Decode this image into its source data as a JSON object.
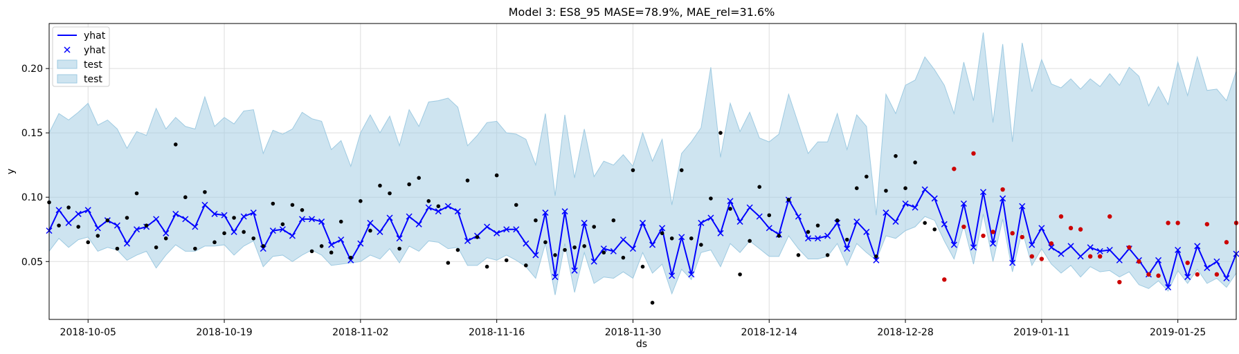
{
  "chart_data": {
    "type": "line",
    "title": "Model 3: ES8_95 MASE=78.9%, MAE_rel=31.6%",
    "xlabel": "ds",
    "ylabel": "y",
    "x_range": [
      "2018-10-01",
      "2019-01-31"
    ],
    "ylim": [
      0.005,
      0.235
    ],
    "grid": true,
    "legend_position": "top-left",
    "x_ticks": [
      "2018-10-05",
      "2018-10-19",
      "2018-11-02",
      "2018-11-16",
      "2018-11-30",
      "2018-12-14",
      "2018-12-28",
      "2019-01-11",
      "2019-01-25"
    ],
    "y_ticks": [
      "0.05",
      "0.10",
      "0.15",
      "0.20"
    ],
    "legend": [
      {
        "label": "yhat",
        "marker": "line"
      },
      {
        "label": "yhat",
        "marker": "x"
      },
      {
        "label": "test",
        "marker": "patch"
      },
      {
        "label": "test",
        "marker": "patch"
      }
    ],
    "colors": {
      "forecast": "#0000ff",
      "band_fill": "#a6cee3",
      "band_edge": "#9ecae1",
      "train_points": "#000000",
      "test_points": "#cc0000",
      "grid": "#dddddd"
    },
    "forecast": {
      "x_start": "2018-10-01",
      "x_end": "2019-01-31",
      "yhat": [
        0.074,
        0.09,
        0.08,
        0.087,
        0.09,
        0.076,
        0.082,
        0.078,
        0.064,
        0.075,
        0.077,
        0.083,
        0.072,
        0.087,
        0.083,
        0.077,
        0.094,
        0.087,
        0.086,
        0.073,
        0.085,
        0.088,
        0.06,
        0.074,
        0.075,
        0.07,
        0.083,
        0.083,
        0.081,
        0.063,
        0.067,
        0.051,
        0.064,
        0.08,
        0.073,
        0.084,
        0.068,
        0.085,
        0.079,
        0.092,
        0.089,
        0.093,
        0.089,
        0.066,
        0.07,
        0.077,
        0.072,
        0.075,
        0.075,
        0.064,
        0.055,
        0.088,
        0.038,
        0.089,
        0.043,
        0.08,
        0.05,
        0.06,
        0.058,
        0.067,
        0.06,
        0.08,
        0.063,
        0.076,
        0.039,
        0.069,
        0.04,
        0.08,
        0.084,
        0.072,
        0.097,
        0.081,
        0.092,
        0.085,
        0.076,
        0.071,
        0.098,
        0.085,
        0.068,
        0.068,
        0.07,
        0.08,
        0.06,
        0.081,
        0.073,
        0.051,
        0.088,
        0.081,
        0.095,
        0.092,
        0.106,
        0.099,
        0.079,
        0.063,
        0.095,
        0.061,
        0.104,
        0.064,
        0.099,
        0.049,
        0.093,
        0.063,
        0.076,
        0.061,
        0.056,
        0.062,
        0.054,
        0.061,
        0.058,
        0.059,
        0.051,
        0.06,
        0.051,
        0.04,
        0.051,
        0.03,
        0.059,
        0.038,
        0.062,
        0.045,
        0.05,
        0.037,
        0.056
      ],
      "upper": [
        0.15,
        0.165,
        0.16,
        0.166,
        0.173,
        0.156,
        0.16,
        0.153,
        0.138,
        0.151,
        0.148,
        0.169,
        0.153,
        0.162,
        0.155,
        0.153,
        0.178,
        0.155,
        0.162,
        0.157,
        0.167,
        0.168,
        0.134,
        0.152,
        0.149,
        0.153,
        0.166,
        0.161,
        0.159,
        0.137,
        0.144,
        0.124,
        0.15,
        0.164,
        0.15,
        0.163,
        0.14,
        0.168,
        0.155,
        0.174,
        0.175,
        0.177,
        0.17,
        0.14,
        0.148,
        0.158,
        0.159,
        0.15,
        0.149,
        0.145,
        0.125,
        0.165,
        0.101,
        0.164,
        0.115,
        0.153,
        0.116,
        0.128,
        0.125,
        0.133,
        0.124,
        0.15,
        0.128,
        0.145,
        0.094,
        0.134,
        0.143,
        0.154,
        0.201,
        0.131,
        0.173,
        0.151,
        0.166,
        0.146,
        0.143,
        0.149,
        0.18,
        0.157,
        0.134,
        0.143,
        0.143,
        0.165,
        0.137,
        0.164,
        0.155,
        0.086,
        0.18,
        0.165,
        0.187,
        0.191,
        0.209,
        0.199,
        0.187,
        0.165,
        0.205,
        0.175,
        0.228,
        0.158,
        0.219,
        0.143,
        0.22,
        0.182,
        0.207,
        0.188,
        0.185,
        0.192,
        0.184,
        0.192,
        0.186,
        0.196,
        0.187,
        0.201,
        0.194,
        0.171,
        0.186,
        0.172,
        0.205,
        0.179,
        0.209,
        0.183,
        0.184,
        0.175,
        0.198
      ],
      "lower": [
        0.058,
        0.068,
        0.061,
        0.067,
        0.069,
        0.058,
        0.061,
        0.059,
        0.051,
        0.055,
        0.058,
        0.045,
        0.055,
        0.063,
        0.058,
        0.058,
        0.062,
        0.062,
        0.063,
        0.055,
        0.062,
        0.066,
        0.046,
        0.054,
        0.055,
        0.05,
        0.055,
        0.059,
        0.055,
        0.047,
        0.048,
        0.049,
        0.05,
        0.055,
        0.052,
        0.06,
        0.049,
        0.062,
        0.058,
        0.066,
        0.065,
        0.06,
        0.061,
        0.047,
        0.047,
        0.053,
        0.051,
        0.055,
        0.051,
        0.046,
        0.037,
        0.064,
        0.024,
        0.064,
        0.026,
        0.057,
        0.033,
        0.038,
        0.037,
        0.042,
        0.037,
        0.057,
        0.041,
        0.048,
        0.025,
        0.044,
        0.036,
        0.057,
        0.059,
        0.046,
        0.064,
        0.057,
        0.066,
        0.06,
        0.054,
        0.054,
        0.07,
        0.06,
        0.052,
        0.052,
        0.054,
        0.064,
        0.047,
        0.064,
        0.057,
        0.051,
        0.07,
        0.068,
        0.074,
        0.077,
        0.085,
        0.082,
        0.066,
        0.052,
        0.078,
        0.048,
        0.087,
        0.05,
        0.083,
        0.042,
        0.074,
        0.047,
        0.06,
        0.048,
        0.041,
        0.047,
        0.038,
        0.046,
        0.042,
        0.043,
        0.038,
        0.042,
        0.032,
        0.029,
        0.035,
        0.027,
        0.043,
        0.033,
        0.044,
        0.033,
        0.037,
        0.03,
        0.041
      ]
    },
    "train_points": [
      {
        "x": "2018-10-01",
        "y": 0.096
      },
      {
        "x": "2018-10-02",
        "y": 0.078
      },
      {
        "x": "2018-10-03",
        "y": 0.092
      },
      {
        "x": "2018-10-04",
        "y": 0.077
      },
      {
        "x": "2018-10-05",
        "y": 0.065
      },
      {
        "x": "2018-10-06",
        "y": 0.07
      },
      {
        "x": "2018-10-07",
        "y": 0.082
      },
      {
        "x": "2018-10-08",
        "y": 0.06
      },
      {
        "x": "2018-10-09",
        "y": 0.084
      },
      {
        "x": "2018-10-10",
        "y": 0.103
      },
      {
        "x": "2018-10-11",
        "y": 0.078
      },
      {
        "x": "2018-10-12",
        "y": 0.061
      },
      {
        "x": "2018-10-13",
        "y": 0.068
      },
      {
        "x": "2018-10-14",
        "y": 0.141
      },
      {
        "x": "2018-10-15",
        "y": 0.1
      },
      {
        "x": "2018-10-16",
        "y": 0.06
      },
      {
        "x": "2018-10-17",
        "y": 0.104
      },
      {
        "x": "2018-10-18",
        "y": 0.065
      },
      {
        "x": "2018-10-19",
        "y": 0.072
      },
      {
        "x": "2018-10-20",
        "y": 0.084
      },
      {
        "x": "2018-10-21",
        "y": 0.073
      },
      {
        "x": "2018-10-22",
        "y": 0.068
      },
      {
        "x": "2018-10-23",
        "y": 0.062
      },
      {
        "x": "2018-10-24",
        "y": 0.095
      },
      {
        "x": "2018-10-25",
        "y": 0.079
      },
      {
        "x": "2018-10-26",
        "y": 0.094
      },
      {
        "x": "2018-10-27",
        "y": 0.09
      },
      {
        "x": "2018-10-28",
        "y": 0.058
      },
      {
        "x": "2018-10-29",
        "y": 0.062
      },
      {
        "x": "2018-10-30",
        "y": 0.057
      },
      {
        "x": "2018-10-31",
        "y": 0.081
      },
      {
        "x": "2018-11-01",
        "y": 0.053
      },
      {
        "x": "2018-11-02",
        "y": 0.097
      },
      {
        "x": "2018-11-03",
        "y": 0.074
      },
      {
        "x": "2018-11-04",
        "y": 0.109
      },
      {
        "x": "2018-11-05",
        "y": 0.103
      },
      {
        "x": "2018-11-06",
        "y": 0.06
      },
      {
        "x": "2018-11-07",
        "y": 0.11
      },
      {
        "x": "2018-11-08",
        "y": 0.115
      },
      {
        "x": "2018-11-09",
        "y": 0.097
      },
      {
        "x": "2018-11-10",
        "y": 0.093
      },
      {
        "x": "2018-11-11",
        "y": 0.049
      },
      {
        "x": "2018-11-12",
        "y": 0.059
      },
      {
        "x": "2018-11-13",
        "y": 0.113
      },
      {
        "x": "2018-11-14",
        "y": 0.069
      },
      {
        "x": "2018-11-15",
        "y": 0.046
      },
      {
        "x": "2018-11-16",
        "y": 0.117
      },
      {
        "x": "2018-11-17",
        "y": 0.051
      },
      {
        "x": "2018-11-18",
        "y": 0.094
      },
      {
        "x": "2018-11-19",
        "y": 0.047
      },
      {
        "x": "2018-11-20",
        "y": 0.082
      },
      {
        "x": "2018-11-21",
        "y": 0.065
      },
      {
        "x": "2018-11-22",
        "y": 0.055
      },
      {
        "x": "2018-11-23",
        "y": 0.059
      },
      {
        "x": "2018-11-24",
        "y": 0.061
      },
      {
        "x": "2018-11-25",
        "y": 0.062
      },
      {
        "x": "2018-11-26",
        "y": 0.077
      },
      {
        "x": "2018-11-27",
        "y": 0.057
      },
      {
        "x": "2018-11-28",
        "y": 0.082
      },
      {
        "x": "2018-11-29",
        "y": 0.053
      },
      {
        "x": "2018-11-30",
        "y": 0.121
      },
      {
        "x": "2018-12-01",
        "y": 0.046
      },
      {
        "x": "2018-12-02",
        "y": 0.018
      },
      {
        "x": "2018-12-03",
        "y": 0.072
      },
      {
        "x": "2018-12-04",
        "y": 0.068
      },
      {
        "x": "2018-12-05",
        "y": 0.121
      },
      {
        "x": "2018-12-06",
        "y": 0.068
      },
      {
        "x": "2018-12-07",
        "y": 0.063
      },
      {
        "x": "2018-12-08",
        "y": 0.099
      },
      {
        "x": "2018-12-09",
        "y": 0.15
      },
      {
        "x": "2018-12-10",
        "y": 0.091
      },
      {
        "x": "2018-12-11",
        "y": 0.04
      },
      {
        "x": "2018-12-12",
        "y": 0.066
      },
      {
        "x": "2018-12-13",
        "y": 0.108
      },
      {
        "x": "2018-12-14",
        "y": 0.086
      },
      {
        "x": "2018-12-15",
        "y": 0.07
      },
      {
        "x": "2018-12-16",
        "y": 0.098
      },
      {
        "x": "2018-12-17",
        "y": 0.055
      },
      {
        "x": "2018-12-18",
        "y": 0.073
      },
      {
        "x": "2018-12-19",
        "y": 0.078
      },
      {
        "x": "2018-12-20",
        "y": 0.055
      },
      {
        "x": "2018-12-21",
        "y": 0.082
      },
      {
        "x": "2018-12-22",
        "y": 0.067
      },
      {
        "x": "2018-12-23",
        "y": 0.107
      },
      {
        "x": "2018-12-24",
        "y": 0.116
      },
      {
        "x": "2018-12-25",
        "y": 0.054
      },
      {
        "x": "2018-12-26",
        "y": 0.105
      },
      {
        "x": "2018-12-27",
        "y": 0.132
      },
      {
        "x": "2018-12-28",
        "y": 0.107
      },
      {
        "x": "2018-12-29",
        "y": 0.127
      },
      {
        "x": "2018-12-30",
        "y": 0.08
      },
      {
        "x": "2018-12-31",
        "y": 0.075
      }
    ],
    "test_points": [
      {
        "x": "2019-01-01",
        "y": 0.036
      },
      {
        "x": "2019-01-02",
        "y": 0.122
      },
      {
        "x": "2019-01-03",
        "y": 0.077
      },
      {
        "x": "2019-01-04",
        "y": 0.134
      },
      {
        "x": "2019-01-05",
        "y": 0.07
      },
      {
        "x": "2019-01-06",
        "y": 0.073
      },
      {
        "x": "2019-01-07",
        "y": 0.106
      },
      {
        "x": "2019-01-08",
        "y": 0.072
      },
      {
        "x": "2019-01-09",
        "y": 0.069
      },
      {
        "x": "2019-01-10",
        "y": 0.054
      },
      {
        "x": "2019-01-11",
        "y": 0.052
      },
      {
        "x": "2019-01-12",
        "y": 0.064
      },
      {
        "x": "2019-01-13",
        "y": 0.085
      },
      {
        "x": "2019-01-14",
        "y": 0.076
      },
      {
        "x": "2019-01-15",
        "y": 0.075
      },
      {
        "x": "2019-01-16",
        "y": 0.054
      },
      {
        "x": "2019-01-17",
        "y": 0.054
      },
      {
        "x": "2019-01-18",
        "y": 0.085
      },
      {
        "x": "2019-01-19",
        "y": 0.034
      },
      {
        "x": "2019-01-20",
        "y": 0.061
      },
      {
        "x": "2019-01-21",
        "y": 0.05
      },
      {
        "x": "2019-01-22",
        "y": 0.04
      },
      {
        "x": "2019-01-23",
        "y": 0.039
      },
      {
        "x": "2019-01-24",
        "y": 0.08
      },
      {
        "x": "2019-01-25",
        "y": 0.08
      },
      {
        "x": "2019-01-26",
        "y": 0.049
      },
      {
        "x": "2019-01-27",
        "y": 0.04
      },
      {
        "x": "2019-01-28",
        "y": 0.079
      },
      {
        "x": "2019-01-29",
        "y": 0.04
      },
      {
        "x": "2019-01-30",
        "y": 0.065
      },
      {
        "x": "2019-01-31",
        "y": 0.08
      }
    ]
  }
}
